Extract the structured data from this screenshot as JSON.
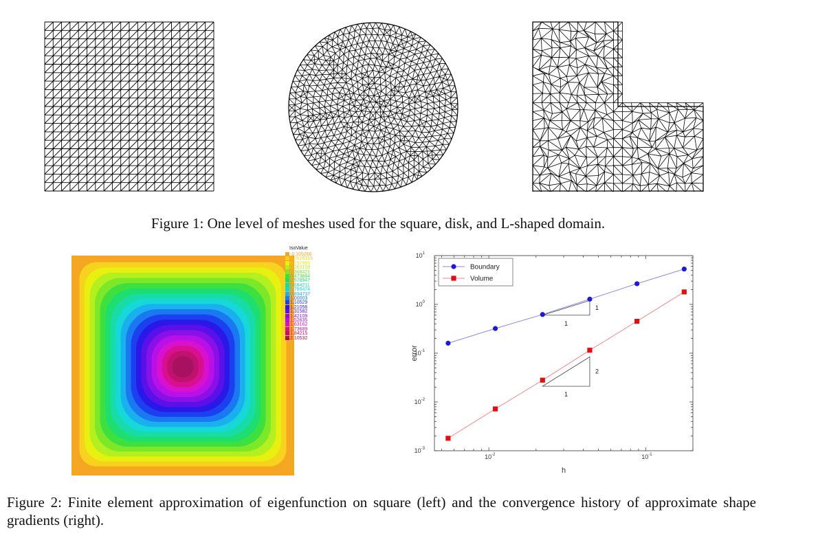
{
  "figure1": {
    "caption": "Figure 1: One level of meshes used for the square, disk, and L-shaped domain.",
    "meshes": [
      "square-mesh",
      "disk-mesh",
      "l-shaped-mesh"
    ]
  },
  "figure2": {
    "caption": "Figure 2: Finite element approximation of eigenfunction on square (left) and the convergence history of approximate shape gradients (right).",
    "isovalue": {
      "title": "IsoValue",
      "levels": [
        "-0.105266",
        "0.0526316",
        "0.157895",
        "0.263158",
        "0.368421",
        "0.473684",
        "0.578947",
        "0.684211",
        "0.789474",
        "0.894737",
        "1.00003",
        "1.10529",
        "1.21056",
        "1.31582",
        "1.42109",
        "1.52635",
        "1.63162",
        "1.73689",
        "1.84215",
        "2.10532"
      ],
      "colors": [
        "#f5a623",
        "#f7d21e",
        "#e8f00f",
        "#b4f020",
        "#7de828",
        "#3ee040",
        "#1ede70",
        "#18dca8",
        "#16d8d8",
        "#1ab0f0",
        "#1a78f0",
        "#1a40f0",
        "#2a18e8",
        "#5a10e8",
        "#8a10e8",
        "#b810e8",
        "#d810d0",
        "#d81090",
        "#c01070",
        "#a81060"
      ]
    },
    "chart_data": {
      "type": "line",
      "xscale": "log",
      "yscale": "log",
      "xlabel": "h",
      "ylabel": "error",
      "xlim": [
        0.0045,
        0.2
      ],
      "ylim": [
        0.001,
        10
      ],
      "xticks": [
        {
          "value": 0.01,
          "label": "10",
          "exp": "-2"
        },
        {
          "value": 0.1,
          "label": "10",
          "exp": "-1"
        }
      ],
      "yticks": [
        {
          "value": 0.001,
          "label": "10",
          "exp": "-3"
        },
        {
          "value": 0.01,
          "label": "10",
          "exp": "-2"
        },
        {
          "value": 0.1,
          "label": "10",
          "exp": "-1"
        },
        {
          "value": 1,
          "label": "10",
          "exp": "0"
        },
        {
          "value": 10,
          "label": "10",
          "exp": "1"
        }
      ],
      "legend_position": "top-left",
      "series": [
        {
          "name": "Boundary",
          "color": "#1a1adc",
          "line_color": "#8a8ae8",
          "marker": "circle",
          "x": [
            0.0055,
            0.011,
            0.022,
            0.044,
            0.088,
            0.176
          ],
          "y": [
            0.16,
            0.32,
            0.62,
            1.28,
            2.65,
            5.3
          ]
        },
        {
          "name": "Volume",
          "color": "#e01010",
          "line_color": "#f08a8a",
          "marker": "square",
          "x": [
            0.0055,
            0.011,
            0.022,
            0.044,
            0.088,
            0.176
          ],
          "y": [
            0.0018,
            0.0072,
            0.028,
            0.115,
            0.45,
            1.8
          ]
        }
      ],
      "slope_triangles": [
        {
          "rise_label": "1",
          "run_label": "1",
          "x0": 0.022,
          "x1": 0.044,
          "y0": 0.6,
          "slope": 1
        },
        {
          "rise_label": "2",
          "run_label": "1",
          "x0": 0.022,
          "x1": 0.044,
          "y0": 0.021,
          "slope": 2
        }
      ]
    }
  }
}
